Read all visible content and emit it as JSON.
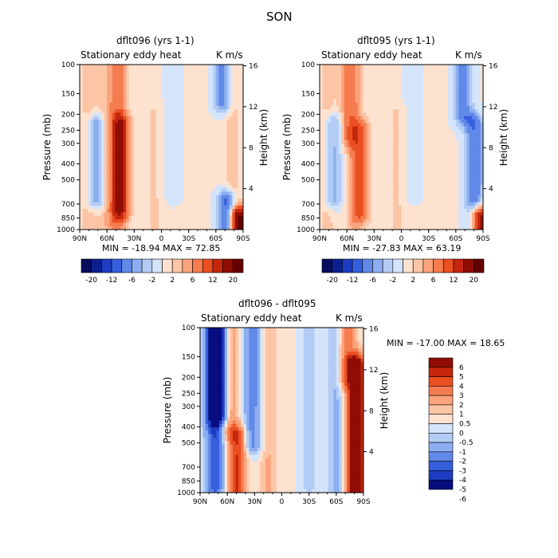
{
  "suptitle": "SON",
  "chart_data": [
    {
      "type": "heatmap",
      "title": "dflt096 (yrs 1-1)",
      "subtitle_left": "Stationary eddy heat",
      "units": "K m/s",
      "ylabel": "Pressure (mb)",
      "ylabel_right": "Height (km)",
      "x_ticks": [
        "90N",
        "60N",
        "30N",
        "0",
        "30S",
        "60S",
        "90S"
      ],
      "y_ticks": [
        "100",
        "150",
        "200",
        "250",
        "300",
        "400",
        "500",
        "700",
        "850",
        "1000"
      ],
      "y_ticks_right": [
        "16",
        "12",
        "8",
        "4"
      ],
      "stats": "MIN = -18.94   MAX =  72.85",
      "colorbar_labels": [
        "-20",
        "-12",
        "-6",
        "-2",
        "2",
        "6",
        "12",
        "20"
      ],
      "features": [
        {
          "lat": 72,
          "p_top": 230,
          "p_bot": 650,
          "value": -8
        },
        {
          "lat": 48,
          "p_top": 100,
          "p_bot": 900,
          "value": 7
        },
        {
          "lat": 45,
          "p_top": 230,
          "p_bot": 750,
          "value": 11
        },
        {
          "lat": 80,
          "p_top": 100,
          "p_bot": 1000,
          "value": 3
        },
        {
          "lat": 62,
          "p_top": 100,
          "p_bot": 1000,
          "value": 2.5
        },
        {
          "lat": 8,
          "p_top": 200,
          "p_bot": 1000,
          "value": 2
        },
        {
          "lat": -12,
          "p_top": 100,
          "p_bot": 600,
          "value": -1.5
        },
        {
          "lat": -68,
          "p_top": 100,
          "p_bot": 170,
          "value": -8
        },
        {
          "lat": -78,
          "p_top": 100,
          "p_bot": 1000,
          "value": 3
        },
        {
          "lat": -72,
          "p_top": 680,
          "p_bot": 1000,
          "value": -12
        },
        {
          "lat": -86,
          "p_top": 850,
          "p_bot": 1000,
          "value": 22
        }
      ]
    },
    {
      "type": "heatmap",
      "title": "dflt095 (yrs 1-1)",
      "subtitle_left": "Stationary eddy heat",
      "units": "K m/s",
      "ylabel": "Pressure (mb)",
      "ylabel_right": "Height (km)",
      "x_ticks": [
        "90N",
        "60N",
        "30N",
        "0",
        "30S",
        "60S",
        "90S"
      ],
      "y_ticks": [
        "100",
        "150",
        "200",
        "250",
        "300",
        "400",
        "500",
        "700",
        "850",
        "1000"
      ],
      "y_ticks_right": [
        "16",
        "12",
        "8",
        "4"
      ],
      "stats": "MIN = -27.83   MAX =  63.19",
      "colorbar_labels": [
        "-20",
        "-12",
        "-6",
        "-2",
        "2",
        "6",
        "12",
        "20"
      ],
      "features": [
        {
          "lat": 75,
          "p_top": 230,
          "p_bot": 650,
          "value": -6
        },
        {
          "lat": 58,
          "p_top": 100,
          "p_bot": 280,
          "value": 6
        },
        {
          "lat": 45,
          "p_top": 250,
          "p_bot": 800,
          "value": 8
        },
        {
          "lat": 52,
          "p_top": 100,
          "p_bot": 1000,
          "value": 3
        },
        {
          "lat": 82,
          "p_top": 100,
          "p_bot": 1000,
          "value": 2.5
        },
        {
          "lat": 5,
          "p_top": 200,
          "p_bot": 1000,
          "value": 2
        },
        {
          "lat": -12,
          "p_top": 100,
          "p_bot": 600,
          "value": -1.5
        },
        {
          "lat": -68,
          "p_top": 100,
          "p_bot": 200,
          "value": -8
        },
        {
          "lat": -80,
          "p_top": 230,
          "p_bot": 1000,
          "value": -9
        },
        {
          "lat": -86,
          "p_top": 850,
          "p_bot": 1000,
          "value": 22
        }
      ]
    },
    {
      "type": "heatmap",
      "title": "dflt096 - dflt095",
      "subtitle_left": "Stationary eddy heat",
      "units": "K m/s",
      "ylabel": "Pressure (mb)",
      "ylabel_right": "Height (km)",
      "x_ticks": [
        "90N",
        "60N",
        "30N",
        "0",
        "30S",
        "60S",
        "90S"
      ],
      "y_ticks": [
        "100",
        "150",
        "200",
        "250",
        "300",
        "400",
        "500",
        "700",
        "850",
        "1000"
      ],
      "y_ticks_right": [
        "16",
        "12",
        "8",
        "4"
      ],
      "stats": "MIN = -17.00   MAX =  18.65",
      "colorbar_labels": [
        "6",
        "5",
        "4",
        "3",
        "2",
        "1",
        "0.5",
        "0",
        "-0.5",
        "-1",
        "-2",
        "-3",
        "-4",
        "-5",
        "-6"
      ],
      "features": [
        {
          "lat": 72,
          "p_top": 100,
          "p_bot": 330,
          "value": -6.5
        },
        {
          "lat": 74,
          "p_top": 100,
          "p_bot": 900,
          "value": -4
        },
        {
          "lat": 50,
          "p_top": 450,
          "p_bot": 1000,
          "value": 4
        },
        {
          "lat": 57,
          "p_top": 100,
          "p_bot": 400,
          "value": 1.5
        },
        {
          "lat": 32,
          "p_top": 100,
          "p_bot": 500,
          "value": -2.5
        },
        {
          "lat": 15,
          "p_top": 100,
          "p_bot": 1000,
          "value": 1
        },
        {
          "lat": -30,
          "p_top": 100,
          "p_bot": 900,
          "value": -0.8
        },
        {
          "lat": -60,
          "p_top": 100,
          "p_bot": 1000,
          "value": -1.2
        },
        {
          "lat": -72,
          "p_top": 100,
          "p_bot": 200,
          "value": 2.5
        },
        {
          "lat": -82,
          "p_top": 170,
          "p_bot": 1000,
          "value": 7
        }
      ]
    }
  ]
}
